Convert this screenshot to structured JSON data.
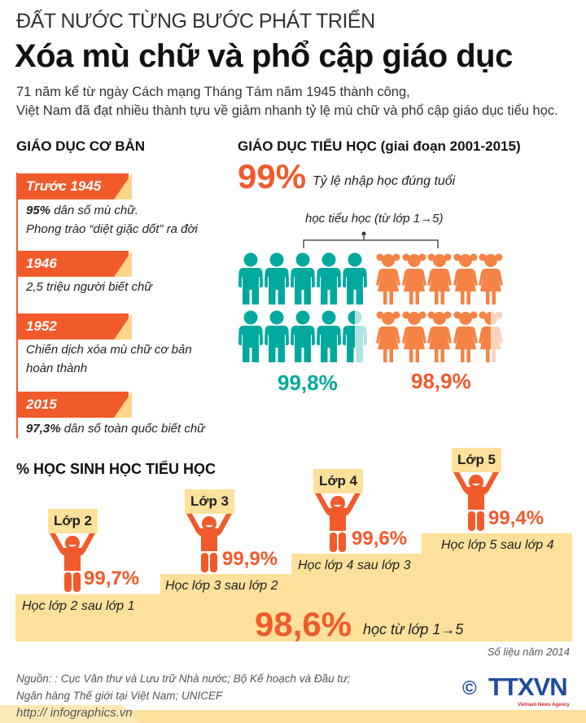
{
  "header": {
    "kicker": "ĐẤT NƯỚC TỪNG BƯỚC PHÁT TRIỂN",
    "title": "Xóa mù chữ và phổ cập giáo dục",
    "description": [
      "71 năm kể từ ngày Cách mạng Tháng Tám năm 1945 thành công,",
      "Việt Nam đã đạt nhiều thành tựu về giảm nhanh tỷ lệ mù chữ và phổ cập giáo dục tiểu học."
    ]
  },
  "basic_education": {
    "heading": "GIÁO DỤC CƠ BẢN",
    "timeline": [
      {
        "year": "Trước 1945",
        "bold": "95%",
        "lines": [
          " dân số mù chữ.",
          "Phong trào “diệt giặc dốt” ra đời"
        ]
      },
      {
        "year": "1946",
        "bold": "",
        "lines": [
          "2,5 triệu người biết chữ"
        ]
      },
      {
        "year": "1952",
        "bold": "",
        "lines": [
          "Chiến dịch xóa mù chữ cơ bản",
          "hoàn thành"
        ]
      },
      {
        "year": "2015",
        "bold": "97,3%",
        "lines": [
          " dân số toàn quốc biết chữ"
        ]
      }
    ]
  },
  "primary_education": {
    "heading": "GIÁO DỤC TIỂU HỌC (giai đoạn 2001-2015)",
    "enrollment_value": "99%",
    "enrollment_label": "Tỷ lệ nhập học đúng tuổi",
    "bracket_label": "học tiểu học (từ lớp 1→5)",
    "boys_value": "99,8%",
    "girls_value": "98,9%",
    "icons": {
      "boy": "boy-icon",
      "girl": "girl-icon"
    },
    "colors": {
      "boys": "#00a99d",
      "girls": "#f58345"
    }
  },
  "grade_progression": {
    "heading": "% HỌC SINH HỌC TIỂU HỌC",
    "steps": [
      {
        "sign": "Lớp 2",
        "value": "99,7%",
        "label": "Học lớp 2 sau lớp 1"
      },
      {
        "sign": "Lớp 3",
        "value": "99,9%",
        "label": "Học lớp 3 sau lớp 2"
      },
      {
        "sign": "Lớp 4",
        "value": "99,6%",
        "label": "Học lớp 4 sau lớp 3"
      },
      {
        "sign": "Lớp 5",
        "value": "99,4%",
        "label": "Học lớp 5 sau lớp 4"
      }
    ],
    "total_value": "98,6%",
    "total_label": "học từ lớp 1→5",
    "data_note": "Số liệu năm 2014"
  },
  "footer": {
    "source": [
      "Nguồn: : Cục Văn thư và Lưu trữ Nhà nước; Bộ Kế hoạch và Đầu tư;",
      "Ngân hàng Thế giới tại Việt Nam; UNICEF"
    ],
    "website": "http:// infographics.vn",
    "logo_text": "TTXVN",
    "logo_sub": "Vietnam News Agency",
    "copyright": "©"
  },
  "colors": {
    "accent": "#f15a2b",
    "step_fill": "#fde09a",
    "teal": "#00a99d",
    "logo_blue": "#1e4c9a"
  }
}
